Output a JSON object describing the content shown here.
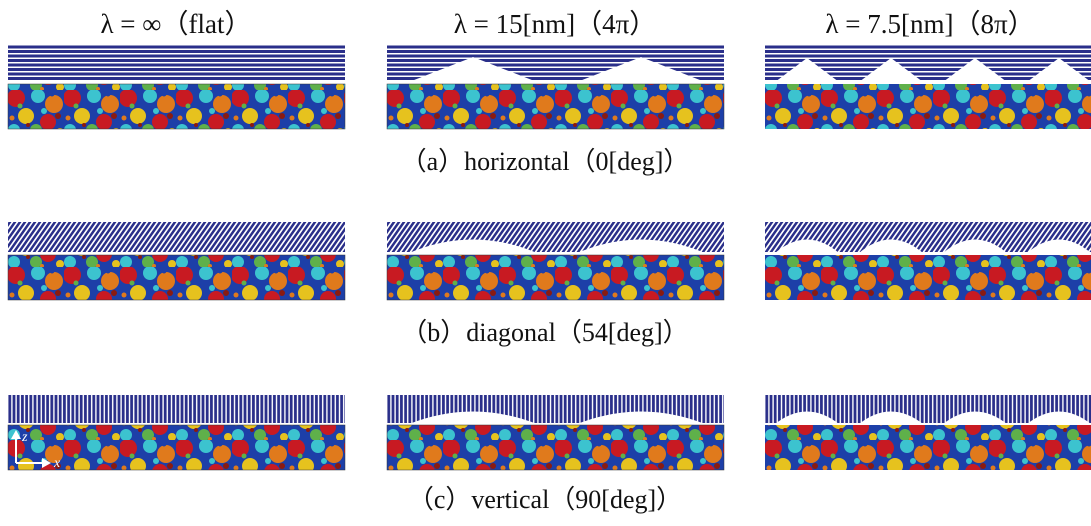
{
  "columns": [
    "λ = ∞（flat）",
    "λ = 15[nm]（4π）",
    "λ = 7.5[nm]（8π）"
  ],
  "rows": [
    {
      "caption": "（a）horizontal（0[deg]）"
    },
    {
      "caption": "（b）diagonal（54[deg]）"
    },
    {
      "caption": "（c）vertical（90[deg]）"
    }
  ],
  "axes": {
    "z": "z",
    "x": "x"
  }
}
